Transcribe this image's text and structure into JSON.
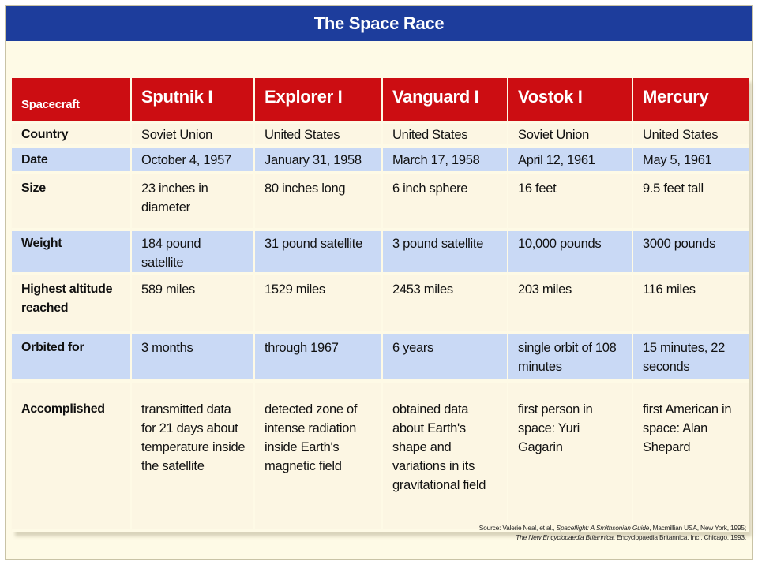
{
  "title": "The Space Race",
  "table": {
    "header": {
      "label": "Spacecraft",
      "columns": [
        "Sputnik I",
        "Explorer I",
        "Vanguard I",
        "Vostok I",
        "Mercury"
      ]
    },
    "rows": [
      {
        "label": "Country",
        "cells": [
          "Soviet Union",
          "United States",
          "United States",
          "Soviet Union",
          "United States"
        ]
      },
      {
        "label": "Date",
        "cells": [
          "October 4, 1957",
          "January 31, 1958",
          "March 17, 1958",
          "April 12, 1961",
          "May 5, 1961"
        ]
      },
      {
        "label": "Size",
        "cells": [
          "23 inches in diameter",
          "80 inches long",
          "6 inch sphere",
          "16 feet",
          "9.5 feet tall"
        ]
      },
      {
        "label": "Weight",
        "cells": [
          "184 pound satellite",
          "31 pound satellite",
          "3 pound satellite",
          "10,000 pounds",
          "3000 pounds"
        ]
      },
      {
        "label": "Highest altitude reached",
        "cells": [
          "589 miles",
          "1529 miles",
          "2453 miles",
          "203 miles",
          "116 miles"
        ]
      },
      {
        "label": "Orbited for",
        "cells": [
          "3 months",
          "through 1967",
          "6 years",
          "single orbit of 108 minutes",
          "15 minutes, 22 seconds"
        ]
      },
      {
        "label": "Accomplished",
        "cells": [
          "transmitted data for 21 days about temperature inside the satellite",
          "detected zone of intense radiation inside Earth's magnetic field",
          "obtained data about Earth's shape and variations in its gravitational field",
          "first person in space: Yuri Gagarin",
          "first American in space: Alan Shepard"
        ]
      }
    ]
  },
  "source": {
    "prefix": "Source: Valerie Neal, et al.,",
    "book1": "Spaceflight: A Smithsonian Guide",
    "book1_pub": ", Macmillian USA, New York, 1995;",
    "book2": "The New Encyclopaedia Britannica",
    "book2_pub": ", Encyclopaedia Britannica, Inc., Chicago, 1993."
  },
  "colors": {
    "title_bar": "#1d3d9c",
    "header_row": "#cc0d12",
    "blue_row": "#c9d9f5",
    "cream_row": "#fcf6e3",
    "background": "#fefae6"
  }
}
